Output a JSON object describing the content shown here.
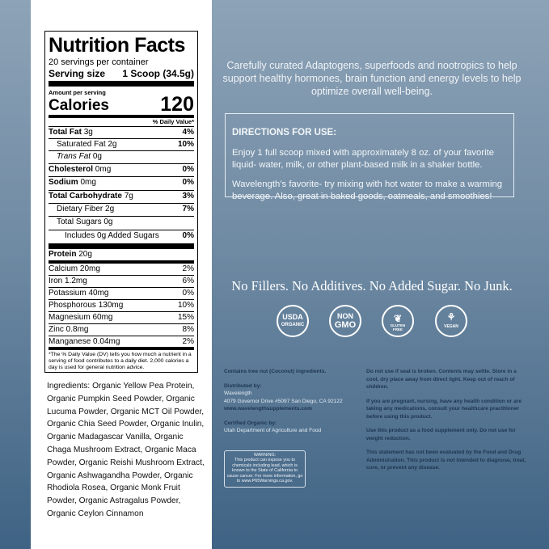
{
  "nutrition": {
    "title": "Nutrition Facts",
    "servings": "20 servings per container",
    "serving_label": "Serving size",
    "serving_value": "1 Scoop (34.5g)",
    "amount_label": "Amount per serving",
    "calories_label": "Calories",
    "calories": "120",
    "dv_header": "% Daily Value*",
    "rows": [
      {
        "label": "Total Fat",
        "amt": "3g",
        "dv": "4%"
      },
      {
        "label": "Saturated Fat",
        "amt": "2g",
        "dv": "10%"
      },
      {
        "label": "Trans Fat",
        "amt": "0g",
        "dv": ""
      },
      {
        "label": "Cholesterol",
        "amt": "0mg",
        "dv": "0%"
      },
      {
        "label": "Sodium",
        "amt": "0mg",
        "dv": "0%"
      },
      {
        "label": "Total Carbohydrate",
        "amt": "7g",
        "dv": "3%"
      },
      {
        "label": "Dietary Fiber",
        "amt": "2g",
        "dv": "7%"
      },
      {
        "label": "Total Sugars",
        "amt": "0g",
        "dv": ""
      },
      {
        "label": "Includes 0g Added Sugars",
        "amt": "",
        "dv": "0%"
      },
      {
        "label": "Protein",
        "amt": "20g",
        "dv": ""
      }
    ],
    "minerals": [
      {
        "label": "Calcium 20mg",
        "dv": "2%"
      },
      {
        "label": "Iron 1.2mg",
        "dv": "6%"
      },
      {
        "label": "Potassium 40mg",
        "dv": "0%"
      },
      {
        "label": "Phosphorous 130mg",
        "dv": "10%"
      },
      {
        "label": "Magnesium 60mg",
        "dv": "15%"
      },
      {
        "label": "Zinc 0.8mg",
        "dv": "8%"
      },
      {
        "label": "Manganese 0.04mg",
        "dv": "2%"
      }
    ],
    "footnote": "*The % Daily Value (DV) tells you how much a nutrient in a serving of food contributes to a daily diet. 2,000 calories a day is used for general nutrition advice."
  },
  "ingredients": "Ingredients: Organic Yellow Pea Protein, Organic Pumpkin Seed Powder, Organic Lucuma Powder, Organic MCT Oil Powder, Organic Chia Seed Powder, Organic Inulin, Organic Madagascar Vanilla, Organic Chaga Mushroom Extract, Organic Maca Powder, Organic Reishi Mushroom Extract, Organic Ashwagandha Powder, Organic Rhodiola Rosea, Organic Monk Fruit Powder, Organic Astragalus Powder, Organic Ceylon Cinnamon",
  "tagline": "Carefully curated Adaptogens, superfoods and nootropics to help support healthy hormones, brain function and energy levels to help optimize overall well-being.",
  "directions": {
    "title": "DIRECTIONS FOR USE:",
    "p1": "Enjoy 1 full scoop mixed with approximately 8 oz. of your favorite liquid- water, milk, or other plant-based milk in a shaker bottle.",
    "p2": "Wavelength’s favorite- try mixing with hot water to make a warming beverage.  Also, great in baked goods, oatmeals, and smoothies!"
  },
  "slogan": "No Fillers. No Additives. No Added Sugar. No Junk.",
  "badges": [
    {
      "l1": "USDA",
      "l2": "ORGANIC"
    },
    {
      "l1": "NON",
      "l2": "GMO"
    },
    {
      "l1": "GLUTEN",
      "l2": "FREE"
    },
    {
      "l1": "",
      "l2": "VEGAN"
    }
  ],
  "left_info": {
    "allergen": "Contains tree nut (Coconut) ingredients.",
    "dist_label": "Distributed by:",
    "dist_name": "Wavelength",
    "dist_addr": "4079 Governor Drive #5097 San Diego, CA 92122",
    "website": "www.wavelengthsupplements.com",
    "cert_label": "Certified Organic by:",
    "cert_name": "Utah Department of Agriculture and Food"
  },
  "warning": {
    "title": "WARNING:",
    "text": "This product can expose you to chemicals including lead, which is known to the State of California to cause cancer. For more information, go to www.P65Warnings.ca.gov."
  },
  "right_info": [
    "Do not use if seal is broken. Contents may settle. Store in a cool, dry place away from direct light. Keep out of reach of children.",
    "If you are pregnant, nursing, have any health condition or are taking any medications, consult your healthcare practitioner before using this product.",
    "Use this product as a food supplement only. Do not use for weight reduction.",
    "This statement has not been evaluated by the Food and Drug Administration. This product is not intended to diagnose, treat, cure, or prevent any disease."
  ]
}
